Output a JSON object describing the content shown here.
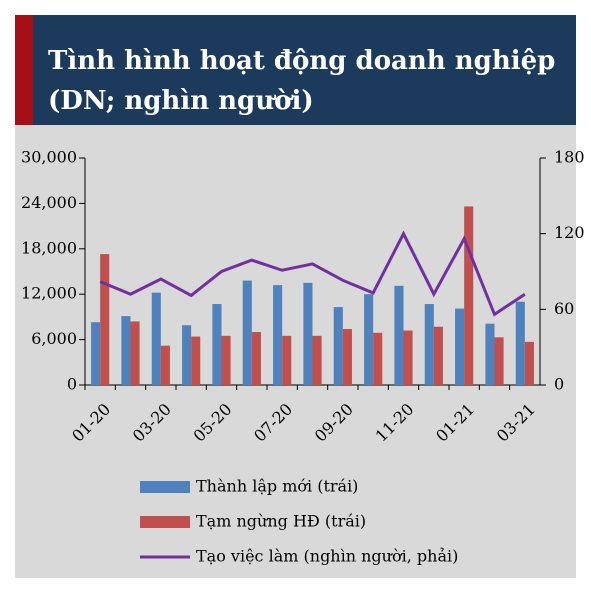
{
  "chart_data": {
    "type": "bar",
    "title": [
      "Tình hình hoạt động doanh nghiệp",
      "(DN; nghìn người)"
    ],
    "categories": [
      "01-20",
      null,
      "03-20",
      null,
      "05-20",
      null,
      "07-20",
      null,
      "09-20",
      null,
      "11-20",
      null,
      "01-21",
      null,
      "03-21"
    ],
    "series": [
      {
        "name": "Thành lập mới (trái)",
        "color": "#4f81bd",
        "type": "bar",
        "values": [
          8300,
          9100,
          12200,
          7900,
          10700,
          13800,
          13200,
          13500,
          10300,
          12000,
          13100,
          10700,
          10100,
          8100,
          11000
        ]
      },
      {
        "name": "Tạm ngừng HĐ (trái)",
        "color": "#c0504d",
        "type": "bar",
        "values": [
          17300,
          8400,
          5200,
          6400,
          6500,
          7000,
          6500,
          6500,
          7400,
          6900,
          7200,
          7700,
          23600,
          6300,
          5700
        ]
      },
      {
        "name": "Tạo việc làm (nghìn người, phải)",
        "color": "#7030a0",
        "type": "line",
        "axis": "y2",
        "values": [
          82,
          72,
          84,
          71,
          90,
          99,
          91,
          96,
          83,
          73,
          120,
          72,
          116,
          56,
          72
        ]
      }
    ],
    "ylim": [
      0,
      30000
    ],
    "yticks": [
      0,
      {
        "value": 6000,
        "label": "6,000"
      },
      {
        "value": 12000,
        "label": "12,000"
      },
      {
        "value": 18000,
        "label": "18,000"
      },
      {
        "value": 24000,
        "label": "24,000"
      },
      {
        "value": 30000,
        "label": "30,000"
      }
    ],
    "y2lim": [
      0,
      180
    ],
    "y2ticks": [
      0,
      60,
      120,
      180
    ],
    "legend": "bottom"
  }
}
